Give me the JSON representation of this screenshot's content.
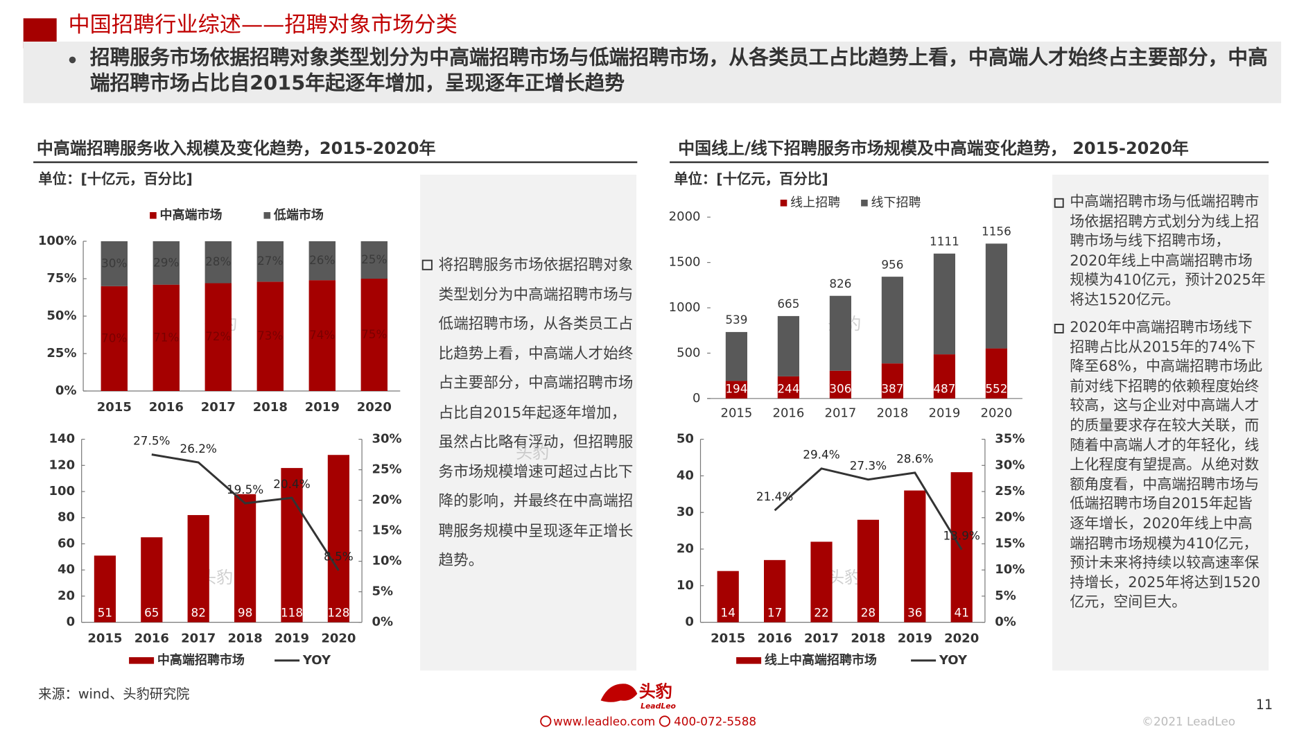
{
  "header": {
    "title": "中国招聘行业综述——招聘对象市场分类",
    "bullet": "招聘服务市场依据招聘对象类型划分为中高端招聘市场与低端招聘市场，从各类员工占比趋势上看，中高端人才始终占主要部分，中高端招聘市场占比自2015年起逐年增加，呈现逐年正增长趋势"
  },
  "left_panel": {
    "title": "中高端招聘服务收入规模及变化趋势，2015-2020年",
    "unit": "单位：[十亿元，百分比]",
    "note": "将招聘服务市场依据招聘对象类型划分为中高端招聘市场与低端招聘市场，从各类员工占比趋势上看，中高端人才始终占主要部分，中高端招聘市场占比自2015年起逐年增加，虽然占比略有浮动，但招聘服务市场规模增速可超过占比下降的影响，并最终在中高端招聘服务规模中呈现逐年正增长趋势。"
  },
  "right_panel": {
    "title": "中国线上/线下招聘服务市场规模及中高端变化趋势， 2015-2020年",
    "unit": "单位：[十亿元，百分比]",
    "notes": [
      "中高端招聘市场与低端招聘市场依据招聘方式划分为线上招聘市场与线下招聘市场，2020年线上中高端招聘市场规模为410亿元，预计2025年将达1520亿元。",
      "2020年中高端招聘市场线下招聘占比从2015年的74%下降至68%，中高端招聘市场此前对线下招聘的依赖程度始终较高，这与企业对中高端人才的质量要求存在较大关联，而随着中高端人才的年轻化，线上化程度有望提高。从绝对数额角度看，中高端招聘市场与低端招聘市场自2015年起皆逐年增长，2020年线上中高端招聘市场规模为410亿元，预计未来将持续以较高速率保持增长，2025年将达到1520亿元，空间巨大。"
    ]
  },
  "watermark": "头豹",
  "chart_data": [
    {
      "type": "stacked_bar",
      "categories": [
        "2015",
        "2016",
        "2017",
        "2018",
        "2019",
        "2020"
      ],
      "series": [
        {
          "name": "中高端市场",
          "color": "#a50000",
          "values": [
            70,
            71,
            72,
            73,
            74,
            75
          ],
          "value_labels": [
            "70%",
            "71%",
            "72%",
            "73%",
            "74%",
            "75%"
          ]
        },
        {
          "name": "低端市场",
          "color": "#595959",
          "values": [
            30,
            29,
            28,
            27,
            26,
            25
          ],
          "value_labels": [
            "30%",
            "29%",
            "28%",
            "27%",
            "26%",
            "25%"
          ]
        }
      ],
      "ylim": [
        0,
        100
      ],
      "yticks": [
        {
          "value": 0,
          "label": "0%"
        },
        {
          "value": 25,
          "label": "25%"
        },
        {
          "value": 50,
          "label": "50%"
        },
        {
          "value": 75,
          "label": "75%"
        },
        {
          "value": 100,
          "label": "100%"
        }
      ]
    },
    {
      "type": "bar_line",
      "categories": [
        "2015",
        "2016",
        "2017",
        "2018",
        "2019",
        "2020"
      ],
      "series": [
        {
          "name": "中高端招聘市场",
          "color": "#a50000",
          "values": [
            51,
            65,
            82,
            98,
            118,
            128
          ]
        },
        {
          "name": "YOY",
          "color": "#333333",
          "axis": "y2",
          "values": [
            null,
            27.5,
            26.2,
            19.5,
            20.4,
            8.5
          ],
          "value_labels": [
            null,
            "27.5%",
            "26.2%",
            "19.5%",
            "20.4%",
            "8.5%"
          ]
        }
      ],
      "ylim": [
        0,
        140
      ],
      "yticks": [
        0,
        20,
        40,
        60,
        80,
        100,
        120,
        140
      ],
      "y2lim": [
        0,
        30
      ],
      "y2ticks": [
        {
          "value": 0,
          "label": "0%"
        },
        {
          "value": 5,
          "label": "5%"
        },
        {
          "value": 10,
          "label": "10%"
        },
        {
          "value": 15,
          "label": "15%"
        },
        {
          "value": 20,
          "label": "20%"
        },
        {
          "value": 25,
          "label": "25%"
        },
        {
          "value": 30,
          "label": "30%"
        }
      ]
    },
    {
      "type": "stacked_bar",
      "categories": [
        "2015",
        "2016",
        "2017",
        "2018",
        "2019",
        "2020"
      ],
      "series": [
        {
          "name": "线上招聘",
          "color": "#a50000",
          "values": [
            194,
            244,
            306,
            387,
            487,
            552
          ]
        },
        {
          "name": "线下招聘",
          "color": "#595959",
          "values": [
            539,
            665,
            826,
            956,
            1111,
            1156
          ]
        }
      ],
      "ylim": [
        0,
        2000
      ],
      "yticks": [
        0,
        500,
        1000,
        1500,
        2000
      ]
    },
    {
      "type": "bar_line",
      "categories": [
        "2015",
        "2016",
        "2017",
        "2018",
        "2019",
        "2020"
      ],
      "series": [
        {
          "name": "线上中高端招聘市场",
          "color": "#a50000",
          "values": [
            14,
            17,
            22,
            28,
            36,
            41
          ]
        },
        {
          "name": "YOY",
          "color": "#333333",
          "axis": "y2",
          "values": [
            null,
            21.4,
            29.4,
            27.3,
            28.6,
            13.9
          ],
          "value_labels": [
            null,
            "21.4%",
            "29.4%",
            "27.3%",
            "28.6%",
            "13.9%"
          ]
        }
      ],
      "ylim": [
        0,
        50
      ],
      "yticks": [
        0,
        10,
        20,
        30,
        40,
        50
      ],
      "y2lim": [
        0,
        35
      ],
      "y2ticks": [
        {
          "value": 0,
          "label": "0%"
        },
        {
          "value": 5,
          "label": "5%"
        },
        {
          "value": 10,
          "label": "10%"
        },
        {
          "value": 15,
          "label": "15%"
        },
        {
          "value": 20,
          "label": "20%"
        },
        {
          "value": 25,
          "label": "25%"
        },
        {
          "value": 30,
          "label": "30%"
        },
        {
          "value": 35,
          "label": "35%"
        }
      ]
    }
  ],
  "footer": {
    "source": "来源：wind、头豹研究院",
    "brand": "头豹",
    "brand_en": "LeadLeo",
    "website": "www.leadleo.com",
    "phone": "400-072-5588",
    "copyright": "©2021 LeadLeo",
    "page": "11"
  }
}
